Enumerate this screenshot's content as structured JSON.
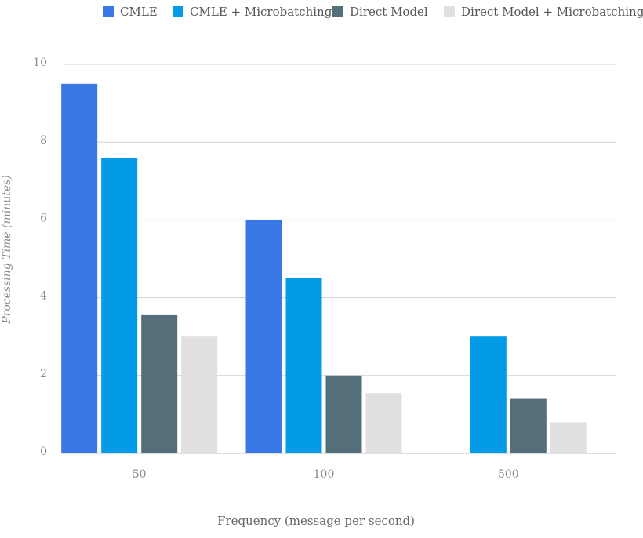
{
  "chart_data": {
    "type": "bar",
    "title": "",
    "xlabel": "Frequency (message per second)",
    "ylabel": "Processing Time (minutes)",
    "categories": [
      "50",
      "100",
      "500"
    ],
    "ylim": [
      0,
      10
    ],
    "yticks": [
      0,
      2,
      4,
      6,
      8,
      10
    ],
    "grid": true,
    "legend_position": "top",
    "series": [
      {
        "name": "CMLE",
        "color": "#3b78e7",
        "values": [
          9.5,
          6.0,
          null
        ]
      },
      {
        "name": "CMLE + Microbatching",
        "color": "#039be5",
        "values": [
          7.6,
          4.5,
          3.0
        ]
      },
      {
        "name": "Direct Model",
        "color": "#546e7a",
        "values": [
          3.55,
          2.0,
          1.4
        ]
      },
      {
        "name": "Direct Model + Microbatching",
        "color": "#e0e0e0",
        "values": [
          3.0,
          1.55,
          0.8
        ]
      }
    ]
  }
}
